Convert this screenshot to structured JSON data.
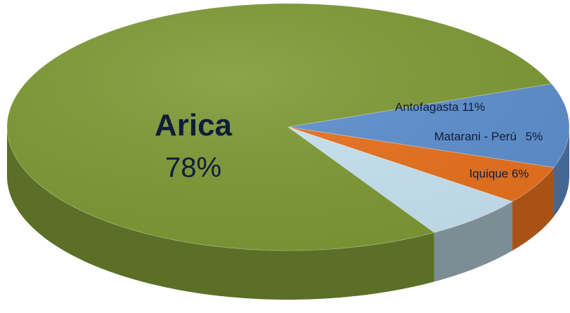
{
  "chart_data": {
    "type": "pie",
    "style": "3d",
    "title": "",
    "slices": [
      {
        "name": "Arica",
        "percent_label": "78%",
        "value": 78,
        "color": "#7f9a36"
      },
      {
        "name": "Antofagasta",
        "percent_label": "11%",
        "value": 11,
        "color": "#5f90cf"
      },
      {
        "name": "Matarani - Perú",
        "percent_label": "5%",
        "value": 5,
        "color": "#e9721f"
      },
      {
        "name": "Iquique",
        "percent_label": "6%",
        "value": 6,
        "color": "#c9e4f2"
      }
    ]
  }
}
